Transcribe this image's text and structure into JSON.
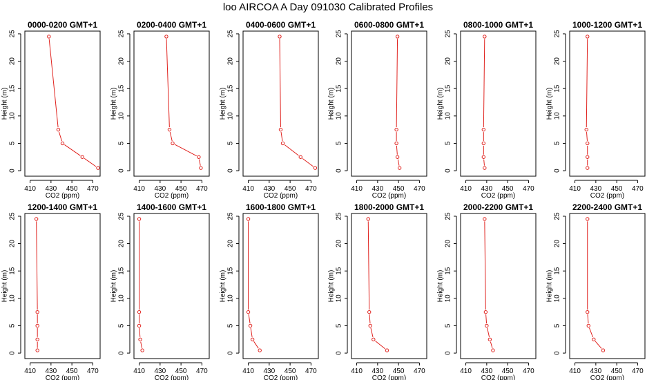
{
  "title": "loo AIRCOA A  Day 091030  Calibrated Profiles",
  "colors": {
    "line": "#e0201c",
    "axis": "#000000"
  },
  "chart_data": [
    {
      "type": "line",
      "title": "0000-0200 GMT+1",
      "xlabel": "CO2 (ppm)",
      "ylabel": "Height (m)",
      "xlim": [
        405,
        477
      ],
      "ylim": [
        -1,
        25.5
      ],
      "xticks": [
        410,
        430,
        450,
        470
      ],
      "yticks": [
        0,
        5,
        10,
        15,
        20,
        25
      ],
      "grid": false,
      "series": [
        {
          "x": [
            428,
            437,
            441,
            460,
            475
          ],
          "y": [
            24.5,
            7.5,
            5,
            2.5,
            0.5
          ]
        }
      ]
    },
    {
      "type": "line",
      "title": "0200-0400 GMT+1",
      "xlabel": "CO2 (ppm)",
      "ylabel": "Height (m)",
      "xlim": [
        405,
        477
      ],
      "ylim": [
        -1,
        25.5
      ],
      "xticks": [
        410,
        430,
        450,
        470
      ],
      "yticks": [
        0,
        5,
        10,
        15,
        20,
        25
      ],
      "grid": false,
      "series": [
        {
          "x": [
            436,
            439,
            442,
            467,
            469
          ],
          "y": [
            24.5,
            7.5,
            5,
            2.5,
            0.5
          ]
        }
      ]
    },
    {
      "type": "line",
      "title": "0400-0600 GMT+1",
      "xlabel": "CO2 (ppm)",
      "ylabel": "Height (m)",
      "xlim": [
        405,
        477
      ],
      "ylim": [
        -1,
        25.5
      ],
      "xticks": [
        410,
        430,
        450,
        470
      ],
      "yticks": [
        0,
        5,
        10,
        15,
        20,
        25
      ],
      "grid": false,
      "series": [
        {
          "x": [
            440,
            441,
            443,
            460,
            474
          ],
          "y": [
            24.5,
            7.5,
            5,
            2.5,
            0.5
          ]
        }
      ]
    },
    {
      "type": "line",
      "title": "0600-0800 GMT+1",
      "xlabel": "CO2 (ppm)",
      "ylabel": "Height (m)",
      "xlim": [
        405,
        477
      ],
      "ylim": [
        -1,
        25.5
      ],
      "xticks": [
        410,
        430,
        450,
        470
      ],
      "yticks": [
        0,
        5,
        10,
        15,
        20,
        25
      ],
      "grid": false,
      "series": [
        {
          "x": [
            449,
            448,
            448,
            449,
            451
          ],
          "y": [
            24.5,
            7.5,
            5,
            2.5,
            0.5
          ]
        }
      ]
    },
    {
      "type": "line",
      "title": "0800-1000 GMT+1",
      "xlabel": "CO2 (ppm)",
      "ylabel": "Height (m)",
      "xlim": [
        405,
        477
      ],
      "ylim": [
        -1,
        25.5
      ],
      "xticks": [
        410,
        430,
        450,
        470
      ],
      "yticks": [
        0,
        5,
        10,
        15,
        20,
        25
      ],
      "grid": false,
      "series": [
        {
          "x": [
            428,
            427,
            427,
            427,
            428
          ],
          "y": [
            24.5,
            7.5,
            5,
            2.5,
            0.5
          ]
        }
      ]
    },
    {
      "type": "line",
      "title": "1000-1200 GMT+1",
      "xlabel": "CO2 (ppm)",
      "ylabel": "Height (m)",
      "xlim": [
        405,
        477
      ],
      "ylim": [
        -1,
        25.5
      ],
      "xticks": [
        410,
        430,
        450,
        470
      ],
      "yticks": [
        0,
        5,
        10,
        15,
        20,
        25
      ],
      "grid": false,
      "series": [
        {
          "x": [
            422,
            421,
            422,
            422,
            422
          ],
          "y": [
            24.5,
            7.5,
            5,
            2.5,
            0.5
          ]
        }
      ]
    },
    {
      "type": "line",
      "title": "1200-1400 GMT+1",
      "xlabel": "CO2 (ppm)",
      "ylabel": "Height (m)",
      "xlim": [
        405,
        477
      ],
      "ylim": [
        -1,
        25.5
      ],
      "xticks": [
        410,
        430,
        450,
        470
      ],
      "yticks": [
        0,
        5,
        10,
        15,
        20,
        25
      ],
      "grid": false,
      "series": [
        {
          "x": [
            416,
            417,
            417,
            417,
            417
          ],
          "y": [
            24.5,
            7.5,
            5,
            2.5,
            0.5
          ]
        }
      ]
    },
    {
      "type": "line",
      "title": "1400-1600 GMT+1",
      "xlabel": "CO2 (ppm)",
      "ylabel": "Height (m)",
      "xlim": [
        405,
        477
      ],
      "ylim": [
        -1,
        25.5
      ],
      "xticks": [
        410,
        430,
        450,
        470
      ],
      "yticks": [
        0,
        5,
        10,
        15,
        20,
        25
      ],
      "grid": false,
      "series": [
        {
          "x": [
            410,
            410,
            410,
            411,
            413
          ],
          "y": [
            24.5,
            7.5,
            5,
            2.5,
            0.5
          ]
        }
      ]
    },
    {
      "type": "line",
      "title": "1600-1800 GMT+1",
      "xlabel": "CO2 (ppm)",
      "ylabel": "Height (m)",
      "xlim": [
        405,
        477
      ],
      "ylim": [
        -1,
        25.5
      ],
      "xticks": [
        410,
        430,
        450,
        470
      ],
      "yticks": [
        0,
        5,
        10,
        15,
        20,
        25
      ],
      "grid": false,
      "series": [
        {
          "x": [
            410,
            410,
            412,
            414,
            421
          ],
          "y": [
            24.5,
            7.5,
            5,
            2.5,
            0.5
          ]
        }
      ]
    },
    {
      "type": "line",
      "title": "1800-2000 GMT+1",
      "xlabel": "CO2 (ppm)",
      "ylabel": "Height (m)",
      "xlim": [
        405,
        477
      ],
      "ylim": [
        -1,
        25.5
      ],
      "xticks": [
        410,
        430,
        450,
        470
      ],
      "yticks": [
        0,
        5,
        10,
        15,
        20,
        25
      ],
      "grid": false,
      "series": [
        {
          "x": [
            421,
            422,
            423,
            426,
            439
          ],
          "y": [
            24.5,
            7.5,
            5,
            2.5,
            0.5
          ]
        }
      ]
    },
    {
      "type": "line",
      "title": "2000-2200 GMT+1",
      "xlabel": "CO2 (ppm)",
      "ylabel": "Height (m)",
      "xlim": [
        405,
        477
      ],
      "ylim": [
        -1,
        25.5
      ],
      "xticks": [
        410,
        430,
        450,
        470
      ],
      "yticks": [
        0,
        5,
        10,
        15,
        20,
        25
      ],
      "grid": false,
      "series": [
        {
          "x": [
            428,
            429,
            430,
            433,
            436
          ],
          "y": [
            24.5,
            7.5,
            5,
            2.5,
            0.5
          ]
        }
      ]
    },
    {
      "type": "line",
      "title": "2200-2400 GMT+1",
      "xlabel": "CO2 (ppm)",
      "ylabel": "Height (m)",
      "xlim": [
        405,
        477
      ],
      "ylim": [
        -1,
        25.5
      ],
      "xticks": [
        410,
        430,
        450,
        470
      ],
      "yticks": [
        0,
        5,
        10,
        15,
        20,
        25
      ],
      "grid": false,
      "series": [
        {
          "x": [
            422,
            422,
            423,
            428,
            437
          ],
          "y": [
            24.5,
            7.5,
            5,
            2.5,
            0.5
          ]
        }
      ]
    }
  ]
}
